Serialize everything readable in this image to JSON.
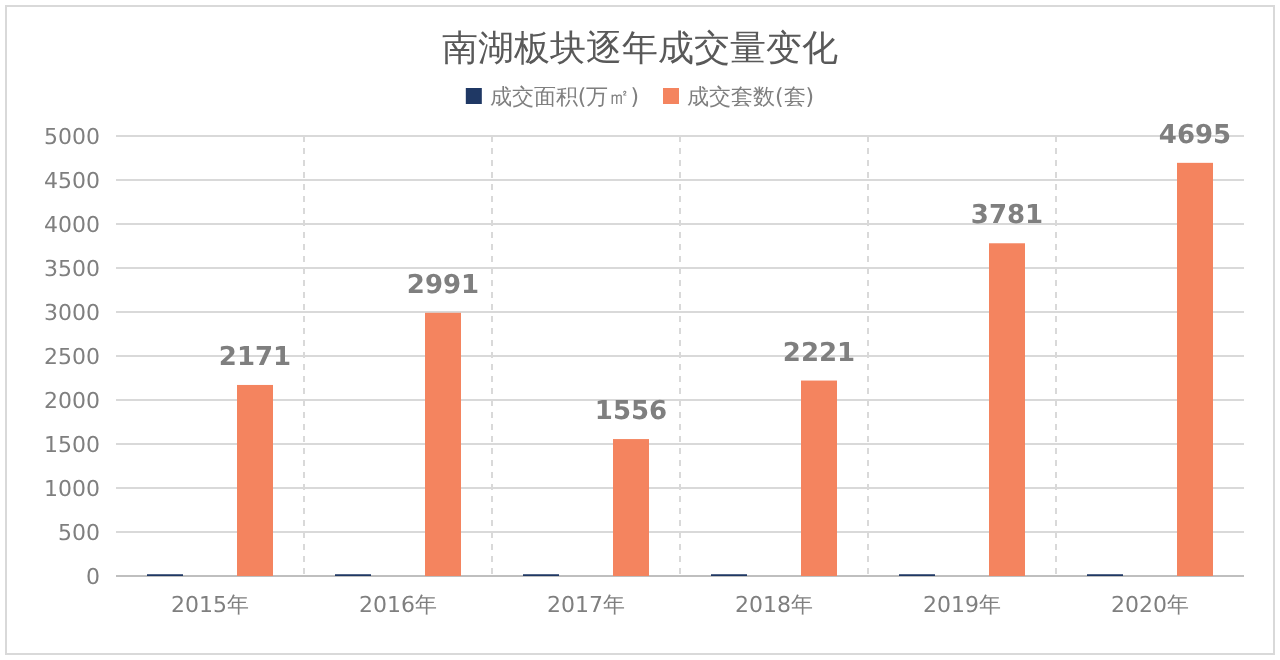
{
  "chart_data": {
    "type": "bar",
    "title": "南湖板块逐年成交量变化",
    "categories": [
      "2015年",
      "2016年",
      "2017年",
      "2018年",
      "2019年",
      "2020年"
    ],
    "series": [
      {
        "name": "成交面积(万㎡)",
        "color": "#1f3864",
        "values": [
          20,
          20,
          20,
          20,
          20,
          20
        ]
      },
      {
        "name": "成交套数(套)",
        "color": "#f4845f",
        "values": [
          2171,
          2991,
          1556,
          2221,
          3781,
          4695
        ],
        "value_labels": [
          "2171",
          "2991",
          "1556",
          "2221",
          "3781",
          "4695"
        ]
      }
    ],
    "ylim": [
      0,
      5000
    ],
    "yticks": [
      0,
      500,
      1000,
      1500,
      2000,
      2500,
      3000,
      3500,
      4000,
      4500,
      5000
    ],
    "grid": true,
    "legend": "top"
  }
}
